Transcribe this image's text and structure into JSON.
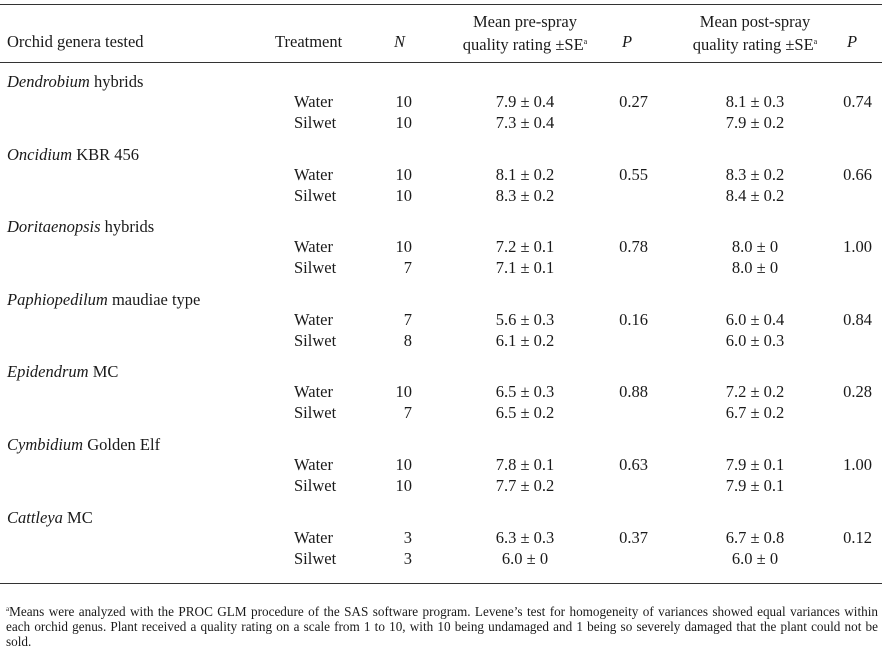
{
  "header": {
    "col_genera": "Orchid genera tested",
    "col_treatment": "Treatment",
    "col_n": "N",
    "col_pre_line1": "Mean pre-spray",
    "col_pre_line2": "quality rating ±SE",
    "col_p1": "P",
    "col_post_line1": "Mean post-spray",
    "col_post_line2": "quality rating ±SE",
    "col_p2": "P",
    "footnote_marker": "a"
  },
  "groups": [
    {
      "genus": "Dendrobium",
      "suffix": " hybrids",
      "rows": [
        {
          "treatment": "Water",
          "n": "10",
          "pre": "7.9 ± 0.4",
          "p1": "0.27",
          "post": "8.1 ± 0.3",
          "p2": "0.74"
        },
        {
          "treatment": "Silwet",
          "n": "10",
          "pre": "7.3 ± 0.4",
          "p1": "",
          "post": "7.9 ± 0.2",
          "p2": ""
        }
      ]
    },
    {
      "genus": "Oncidium",
      "suffix": " KBR 456",
      "rows": [
        {
          "treatment": "Water",
          "n": "10",
          "pre": "8.1 ± 0.2",
          "p1": "0.55",
          "post": "8.3 ± 0.2",
          "p2": "0.66"
        },
        {
          "treatment": "Silwet",
          "n": "10",
          "pre": "8.3 ± 0.2",
          "p1": "",
          "post": "8.4 ± 0.2",
          "p2": ""
        }
      ]
    },
    {
      "genus": "Doritaenopsis",
      "suffix": " hybrids",
      "rows": [
        {
          "treatment": "Water",
          "n": "10",
          "pre": "7.2 ± 0.1",
          "p1": "0.78",
          "post": "8.0 ± 0",
          "p2": "1.00"
        },
        {
          "treatment": "Silwet",
          "n": "7",
          "pre": "7.1 ± 0.1",
          "p1": "",
          "post": "8.0 ± 0",
          "p2": ""
        }
      ]
    },
    {
      "genus": "Paphiopedilum",
      "suffix": " maudiae type",
      "rows": [
        {
          "treatment": "Water",
          "n": "7",
          "pre": "5.6 ± 0.3",
          "p1": "0.16",
          "post": "6.0 ± 0.4",
          "p2": "0.84"
        },
        {
          "treatment": "Silwet",
          "n": "8",
          "pre": "6.1 ± 0.2",
          "p1": "",
          "post": "6.0 ± 0.3",
          "p2": ""
        }
      ]
    },
    {
      "genus": "Epidendrum",
      "suffix": " MC",
      "rows": [
        {
          "treatment": "Water",
          "n": "10",
          "pre": "6.5 ± 0.3",
          "p1": "0.88",
          "post": "7.2 ± 0.2",
          "p2": "0.28"
        },
        {
          "treatment": "Silwet",
          "n": "7",
          "pre": "6.5 ± 0.2",
          "p1": "",
          "post": "6.7 ± 0.2",
          "p2": ""
        }
      ]
    },
    {
      "genus": "Cymbidium",
      "suffix": " Golden Elf",
      "rows": [
        {
          "treatment": "Water",
          "n": "10",
          "pre": "7.8 ± 0.1",
          "p1": "0.63",
          "post": "7.9 ± 0.1",
          "p2": "1.00"
        },
        {
          "treatment": "Silwet",
          "n": "10",
          "pre": "7.7 ± 0.2",
          "p1": "",
          "post": "7.9 ± 0.1",
          "p2": ""
        }
      ]
    },
    {
      "genus": "Cattleya",
      "suffix": " MC",
      "rows": [
        {
          "treatment": "Water",
          "n": "3",
          "pre": "6.3 ± 0.3",
          "p1": "0.37",
          "post": "6.7 ± 0.8",
          "p2": "0.12"
        },
        {
          "treatment": "Silwet",
          "n": "3",
          "pre": "6.0 ± 0",
          "p1": "",
          "post": "6.0 ± 0",
          "p2": ""
        }
      ]
    }
  ],
  "footnote": {
    "marker": "a",
    "text": "Means were analyzed with the PROC GLM procedure of the SAS software program. Levene’s test for homogeneity of variances showed equal variances within each orchid genus. Plant received a quality rating on a scale from 1 to 10, with 10 being undamaged and 1 being so severely damaged that the plant could not be sold."
  }
}
